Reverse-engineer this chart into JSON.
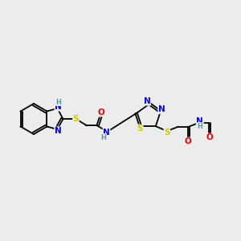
{
  "bg_color": "#ececec",
  "atom_colors": {
    "C": "#000000",
    "N": "#0000ee",
    "O": "#ee0000",
    "S": "#cccc00",
    "H": "#4fa0a0"
  },
  "bond_lw": 1.3,
  "font_size": 7.5
}
